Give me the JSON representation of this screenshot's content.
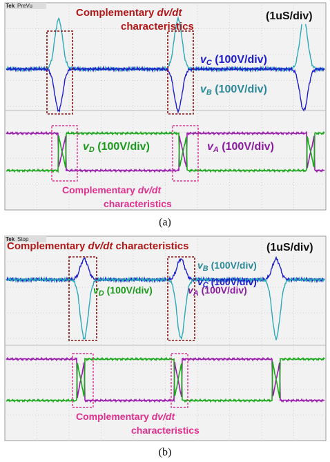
{
  "panels": [
    {
      "brand": "Tek",
      "status": "PreVu",
      "timebase": "(1uS/div)",
      "top_annotation": {
        "lines": [
          [
            "Complementary ",
            "dv/dt"
          ],
          [
            "characteristics"
          ]
        ]
      },
      "bottom_annotation": {
        "lines": [
          [
            "Complementary ",
            "dv/dt"
          ],
          [
            "characteristics"
          ]
        ]
      },
      "labels": [
        {
          "symbol": "v",
          "sub": "C",
          "scale": " (100V/div)",
          "color": "#1c1ccc"
        },
        {
          "symbol": "v",
          "sub": "B",
          "scale": " (100V/div)",
          "color": "#2a8898"
        },
        {
          "symbol": "v",
          "sub": "D",
          "scale": " (100V/div)",
          "color": "#1a9a1a"
        },
        {
          "symbol": "v",
          "sub": "A",
          "scale": " (100V/div)",
          "color": "#8a1a9e"
        }
      ],
      "caption": "(a)"
    },
    {
      "brand": "Tek",
      "status": "Stop",
      "timebase": "(1uS/div)",
      "top_annotation": {
        "lines": [
          [
            "Complementary ",
            "dv/dt",
            " characteristics"
          ]
        ]
      },
      "bottom_annotation": {
        "lines": [
          [
            "Complementary ",
            "dv/dt"
          ],
          [
            "characteristics"
          ]
        ]
      },
      "labels": [
        {
          "symbol": "v",
          "sub": "B",
          "scale": " (100V/div)",
          "color": "#2a8898"
        },
        {
          "symbol": "v",
          "sub": "C",
          "scale": " (100V/div)",
          "color": "#1c1ccc"
        },
        {
          "symbol": "v",
          "sub": "D",
          "scale": " (100V/div)",
          "color": "#1a9a1a"
        },
        {
          "symbol": "v",
          "sub": "A",
          "scale": " (100V/div)",
          "color": "#8a1a9e"
        }
      ],
      "caption": "(b)"
    }
  ]
}
